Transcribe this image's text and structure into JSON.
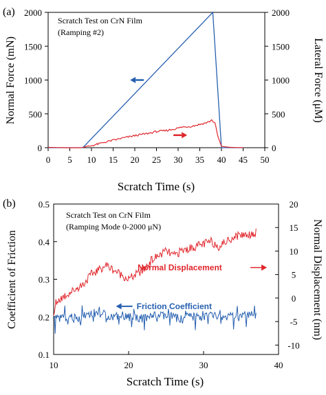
{
  "colors": {
    "blue": "#2660b0",
    "red": "#e0262c",
    "axis": "#000000"
  },
  "chart_data": [
    {
      "panel_label": "(a)",
      "type": "line",
      "annotation_lines": [
        "Scratch Test on CrN Film",
        "(Ramping #2)"
      ],
      "xlabel": "Scratch Time (s)",
      "ylabel_left": "Normal Force (mN)",
      "ylabel_right": "Lateral Force (μM)",
      "xlim": [
        0,
        50
      ],
      "ylim_left": [
        0,
        2000
      ],
      "ylim_right": [
        0,
        2000
      ],
      "x_ticks": [
        "0",
        "5",
        "10",
        "15",
        "20",
        "25",
        "30",
        "35",
        "40",
        "45",
        "50"
      ],
      "y_ticks_left": [
        "0",
        "500",
        "1000",
        "1500",
        "2000"
      ],
      "y_ticks_right": [
        "0",
        "500",
        "1000",
        "1500",
        "2000"
      ],
      "arrows": [
        {
          "color": "blue",
          "direction": "left",
          "x": 20.5,
          "y": 1000
        },
        {
          "color": "red",
          "direction": "right",
          "x": 30.5,
          "y": 185
        }
      ],
      "series": [
        {
          "color": "blue",
          "axis": "left",
          "x": [
            0,
            8,
            38,
            40,
            45
          ],
          "y": [
            0,
            0,
            2000,
            0,
            0
          ]
        },
        {
          "color": "red",
          "axis": "right",
          "x": [
            0,
            4,
            7.5,
            9,
            11,
            13,
            15,
            17,
            19,
            21,
            23,
            25,
            27,
            29,
            31,
            33,
            35,
            36,
            37,
            37.8,
            38.5,
            39.2,
            40,
            42,
            45
          ],
          "y": [
            5,
            0,
            0,
            15,
            45,
            80,
            110,
            140,
            165,
            190,
            210,
            240,
            250,
            275,
            305,
            315,
            345,
            360,
            380,
            410,
            360,
            160,
            20,
            5,
            0
          ]
        }
      ]
    },
    {
      "panel_label": "(b)",
      "type": "line",
      "annotation_lines": [
        "Scratch Test on CrN Film",
        "(Ramping Mode 0-2000 μN)"
      ],
      "xlabel": "Scratch Time (s)",
      "ylabel_left": "Coefficient of Friction",
      "ylabel_right": "Normal Displacement (nm)",
      "xlim": [
        10,
        40
      ],
      "ylim_left": [
        0.1,
        0.5
      ],
      "ylim_right": [
        -12,
        20
      ],
      "x_ticks": [
        "10",
        "20",
        "30",
        "40"
      ],
      "y_ticks_left": [
        "0.1",
        "0.2",
        "0.3",
        "0.4",
        "0.5"
      ],
      "y_ticks_right": [
        "-10",
        "-5",
        "0",
        "5",
        "10",
        "15",
        "20"
      ],
      "series_labels": [
        {
          "name": "Normal Displacement",
          "color": "red",
          "x": 21.2,
          "y": 0.331,
          "arrow": "right"
        },
        {
          "name": "Friction Coefficient",
          "color": "blue",
          "x": 19.6,
          "y": 0.228,
          "arrow": "left"
        }
      ],
      "series": [
        {
          "color": "red",
          "axis": "right",
          "x": [
            10,
            10.3,
            11,
            12,
            13,
            14,
            15,
            16,
            17,
            18,
            19,
            20,
            21,
            22,
            23,
            24,
            25,
            26,
            27,
            28,
            29,
            30,
            31,
            32,
            33,
            34,
            35,
            36,
            37
          ],
          "y": [
            -4,
            -1,
            0,
            1,
            2,
            3,
            5,
            6,
            7,
            6,
            5,
            4,
            5,
            6,
            8,
            9,
            10,
            9,
            10,
            10.5,
            11,
            11.5,
            12,
            11,
            12,
            13,
            13.5,
            13.5,
            14
          ]
        },
        {
          "color": "blue",
          "axis": "left",
          "x": [
            10,
            11,
            12,
            13,
            14,
            15,
            16,
            17,
            18,
            19,
            20,
            21,
            22,
            23,
            24,
            25,
            26,
            27,
            28,
            29,
            30,
            31,
            32,
            33,
            34,
            35,
            36,
            37
          ],
          "y": [
            0.19,
            0.2,
            0.2,
            0.195,
            0.205,
            0.21,
            0.21,
            0.205,
            0.2,
            0.205,
            0.2,
            0.2,
            0.195,
            0.2,
            0.205,
            0.2,
            0.2,
            0.195,
            0.2,
            0.2,
            0.2,
            0.205,
            0.2,
            0.2,
            0.2,
            0.2,
            0.205,
            0.2
          ]
        }
      ]
    }
  ]
}
